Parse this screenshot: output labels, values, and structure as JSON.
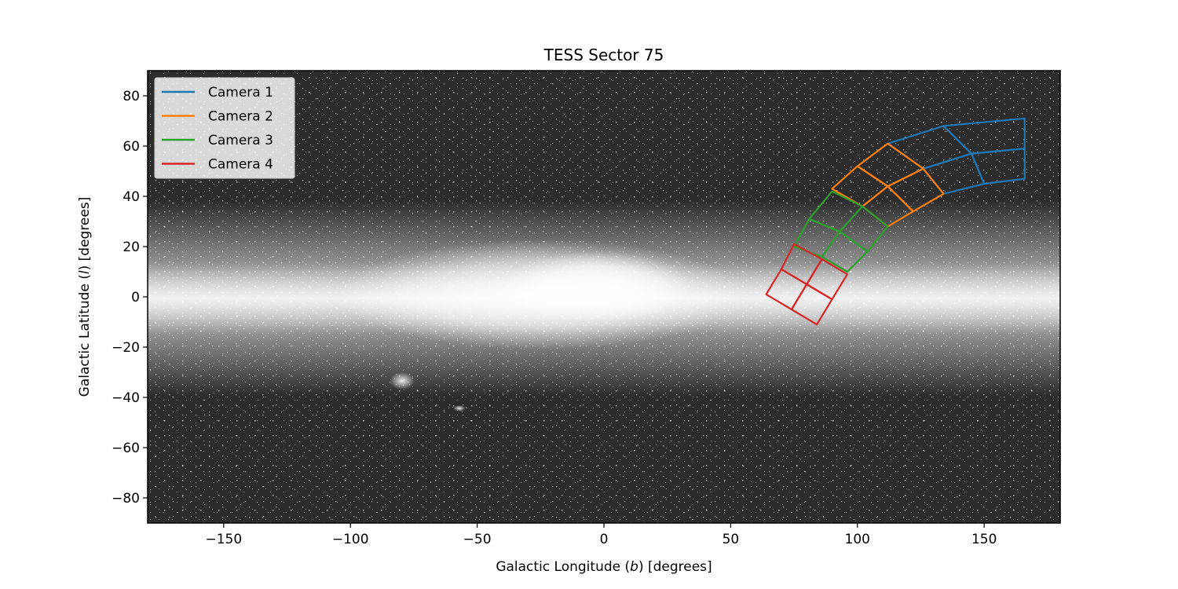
{
  "chart_data": {
    "type": "line",
    "title": "TESS Sector 75",
    "xlabel_parts": [
      "Galactic Longitude (",
      "b",
      ") [degrees]"
    ],
    "ylabel_parts": [
      "Galactic Latitude (",
      "l",
      ") [degrees]"
    ],
    "xlim": [
      -180,
      180
    ],
    "ylim": [
      -90,
      90
    ],
    "xticks": [
      -150,
      -100,
      -50,
      0,
      50,
      100,
      150
    ],
    "yticks": [
      -80,
      -60,
      -40,
      -20,
      0,
      20,
      40,
      60,
      80
    ],
    "xtick_labels": [
      "−150",
      "−100",
      "−50",
      "0",
      "50",
      "100",
      "150"
    ],
    "ytick_labels": [
      "−80",
      "−60",
      "−40",
      "−20",
      "0",
      "20",
      "40",
      "60",
      "80"
    ],
    "background": "all-sky galactic star map (grayscale)",
    "legend_position": "upper-left",
    "series": [
      {
        "name": "Camera 1",
        "color": "#1f77b4",
        "cells": [
          {
            "corners": [
              [
                134,
                68
              ],
              [
                166,
                71
              ],
              [
                166,
                59
              ],
              [
                145,
                57
              ]
            ]
          },
          {
            "corners": [
              [
                145,
                57
              ],
              [
                166,
                59
              ],
              [
                166,
                47
              ],
              [
                150,
                45
              ]
            ]
          },
          {
            "corners": [
              [
                112,
                61
              ],
              [
                134,
                68
              ],
              [
                145,
                57
              ],
              [
                126,
                51
              ]
            ]
          },
          {
            "corners": [
              [
                126,
                51
              ],
              [
                145,
                57
              ],
              [
                150,
                45
              ],
              [
                134,
                41
              ]
            ]
          }
        ]
      },
      {
        "name": "Camera 2",
        "color": "#ff7f0e",
        "cells": [
          {
            "corners": [
              [
                112,
                61
              ],
              [
                126,
                51
              ],
              [
                112,
                44
              ],
              [
                100,
                52
              ]
            ]
          },
          {
            "corners": [
              [
                100,
                52
              ],
              [
                112,
                44
              ],
              [
                102,
                36
              ],
              [
                90,
                43
              ]
            ]
          },
          {
            "corners": [
              [
                126,
                51
              ],
              [
                134,
                41
              ],
              [
                122,
                34
              ],
              [
                112,
                44
              ]
            ]
          },
          {
            "corners": [
              [
                112,
                44
              ],
              [
                122,
                34
              ],
              [
                112,
                28
              ],
              [
                102,
                36
              ]
            ]
          }
        ]
      },
      {
        "name": "Camera 3",
        "color": "#2ca02c",
        "cells": [
          {
            "corners": [
              [
                90,
                42
              ],
              [
                102,
                36
              ],
              [
                93,
                26
              ],
              [
                81,
                31
              ]
            ]
          },
          {
            "corners": [
              [
                81,
                31
              ],
              [
                93,
                26
              ],
              [
                86,
                16
              ],
              [
                75,
                20
              ]
            ]
          },
          {
            "corners": [
              [
                102,
                36
              ],
              [
                112,
                28
              ],
              [
                104,
                18
              ],
              [
                93,
                26
              ]
            ]
          },
          {
            "corners": [
              [
                93,
                26
              ],
              [
                104,
                18
              ],
              [
                96,
                10
              ],
              [
                86,
                16
              ]
            ]
          }
        ]
      },
      {
        "name": "Camera 4",
        "color": "#d62728",
        "cells": [
          {
            "corners": [
              [
                75,
                21
              ],
              [
                86,
                15
              ],
              [
                80,
                5
              ],
              [
                70,
                11
              ]
            ]
          },
          {
            "corners": [
              [
                70,
                11
              ],
              [
                80,
                5
              ],
              [
                74,
                -5
              ],
              [
                64,
                1
              ]
            ]
          },
          {
            "corners": [
              [
                86,
                15
              ],
              [
                96,
                9
              ],
              [
                90,
                -1
              ],
              [
                80,
                5
              ]
            ]
          },
          {
            "corners": [
              [
                80,
                5
              ],
              [
                90,
                -1
              ],
              [
                84,
                -11
              ],
              [
                74,
                -5
              ]
            ]
          }
        ]
      }
    ]
  }
}
